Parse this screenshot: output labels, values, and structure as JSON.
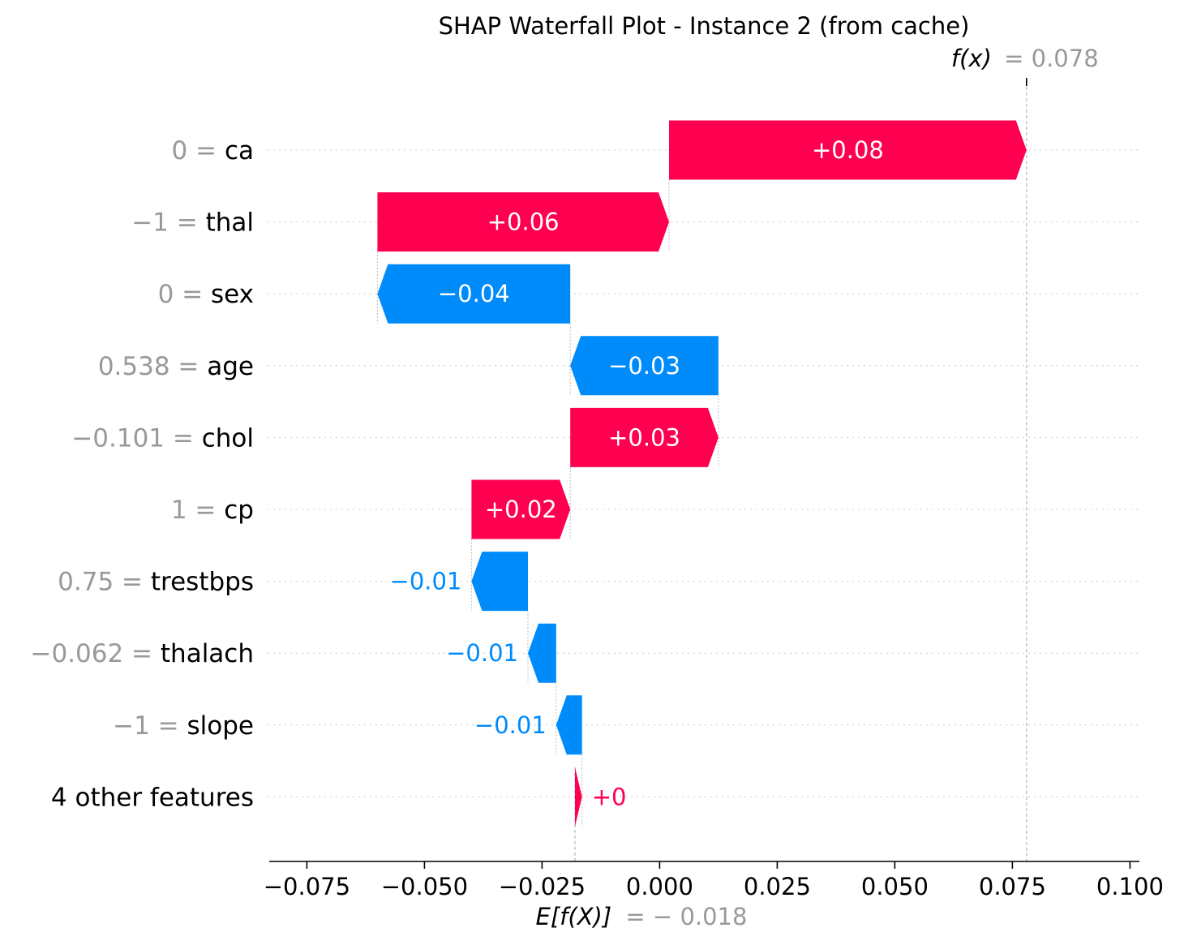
{
  "chart_data": {
    "type": "waterfall",
    "title": "SHAP Waterfall Plot - Instance 2 (from cache)",
    "xlim": [
      -0.083,
      0.102
    ],
    "x_ticks": [
      -0.075,
      -0.05,
      -0.025,
      0.0,
      0.025,
      0.05,
      0.075,
      0.1
    ],
    "x_tick_labels": [
      "−0.075",
      "−0.050",
      "−0.025",
      "0.000",
      "0.025",
      "0.050",
      "0.075",
      "0.100"
    ],
    "base_value": -0.018,
    "base_label_name": "E[f(X)]",
    "base_label_value": "= − 0.018",
    "output_value": 0.078,
    "output_label_name": "f(x)",
    "output_label_value": "= 0.078",
    "grid": "horizontal dotted",
    "features": [
      {
        "value": "0",
        "name": "ca",
        "start": 0.002,
        "end": 0.078,
        "label": "+0.08"
      },
      {
        "value": "−1",
        "name": "thal",
        "start": -0.06,
        "end": 0.002,
        "label": "+0.06"
      },
      {
        "value": "0",
        "name": "sex",
        "start": -0.019,
        "end": -0.06,
        "label": "−0.04"
      },
      {
        "value": "0.538",
        "name": "age",
        "start": 0.0125,
        "end": -0.019,
        "label": "−0.03"
      },
      {
        "value": "−0.101",
        "name": "chol",
        "start": -0.019,
        "end": 0.0125,
        "label": "+0.03"
      },
      {
        "value": "1",
        "name": "cp",
        "start": -0.04,
        "end": -0.019,
        "label": "+0.02"
      },
      {
        "value": "0.75",
        "name": "trestbps",
        "start": -0.028,
        "end": -0.04,
        "label": "−0.01"
      },
      {
        "value": "−0.062",
        "name": "thalach",
        "start": -0.022,
        "end": -0.028,
        "label": "−0.01"
      },
      {
        "value": "−1",
        "name": "slope",
        "start": -0.0165,
        "end": -0.022,
        "label": "−0.01"
      },
      {
        "value": "",
        "name": "4 other features",
        "start": -0.018,
        "end": -0.0165,
        "label": "+0"
      }
    ],
    "colors": {
      "positive": "#ff0051",
      "negative": "#008bfb",
      "value_text": "#999999",
      "text": "#000000"
    }
  }
}
